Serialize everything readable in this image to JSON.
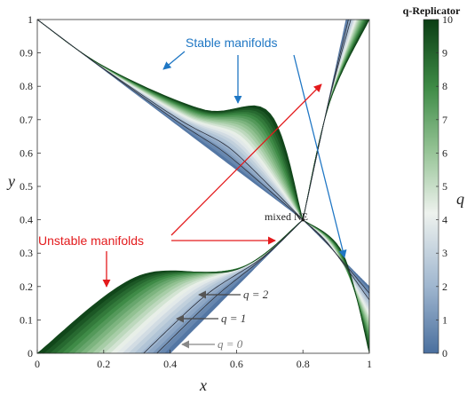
{
  "chart_data": {
    "type": "area",
    "xlabel": "x",
    "ylabel": "y",
    "xlim": [
      0,
      1
    ],
    "ylim": [
      0,
      1
    ],
    "x_ticks": [
      "0",
      "0.2",
      "0.4",
      "0.6",
      "0.8",
      "1"
    ],
    "y_ticks": [
      "0",
      "0.1",
      "0.2",
      "0.3",
      "0.4",
      "0.5",
      "0.6",
      "0.7",
      "0.8",
      "0.9",
      "1"
    ],
    "equilibrium": {
      "label": "mixed NE",
      "x": 0.8,
      "y": 0.4
    },
    "manifold_regions": [
      {
        "role": "stable",
        "q0_boundary": [
          [
            0.0,
            1.0
          ],
          [
            0.8,
            0.4
          ]
        ],
        "q10_boundary": [
          [
            0.0,
            1.0
          ],
          [
            0.2,
            0.86
          ],
          [
            0.5,
            0.73
          ],
          [
            0.7,
            0.72
          ],
          [
            0.8,
            0.4
          ]
        ]
      },
      {
        "role": "unstable",
        "q0_boundary": [
          [
            0.4,
            0.0
          ],
          [
            0.8,
            0.4
          ]
        ],
        "q10_boundary": [
          [
            0.0,
            0.0
          ],
          [
            0.3,
            0.23
          ],
          [
            0.6,
            0.25
          ],
          [
            0.8,
            0.4
          ]
        ]
      },
      {
        "role": "stable",
        "q0_boundary": [
          [
            1.0,
            0.2
          ],
          [
            0.8,
            0.4
          ]
        ],
        "q10_boundary": [
          [
            1.0,
            0.0
          ],
          [
            0.92,
            0.3
          ],
          [
            0.8,
            0.4
          ]
        ]
      },
      {
        "role": "unstable",
        "q0_boundary": [
          [
            0.93,
            1.0
          ],
          [
            0.8,
            0.4
          ]
        ],
        "q10_boundary": [
          [
            1.0,
            1.0
          ],
          [
            0.88,
            0.75
          ],
          [
            0.8,
            0.4
          ]
        ]
      }
    ],
    "curve_labels": [
      "q = 2",
      "q = 1",
      "q = 0"
    ],
    "annotations": {
      "stable": "Stable manifolds",
      "unstable": "Unstable manifolds"
    },
    "colorbar": {
      "title": "q-Replicator",
      "label": "q",
      "range": [
        0,
        10
      ],
      "ticks": [
        "0",
        "1",
        "2",
        "3",
        "4",
        "5",
        "6",
        "7",
        "8",
        "9",
        "10"
      ],
      "colors": {
        "q0": "#4a6f9e",
        "q2": "#9fb6cf",
        "q4": "#eef2ee",
        "q6": "#98c598",
        "q8": "#3d8a45",
        "q10": "#0b3d14"
      }
    },
    "annotation_colors": {
      "stable": "#1f77c4",
      "unstable": "#e31a1c"
    }
  }
}
